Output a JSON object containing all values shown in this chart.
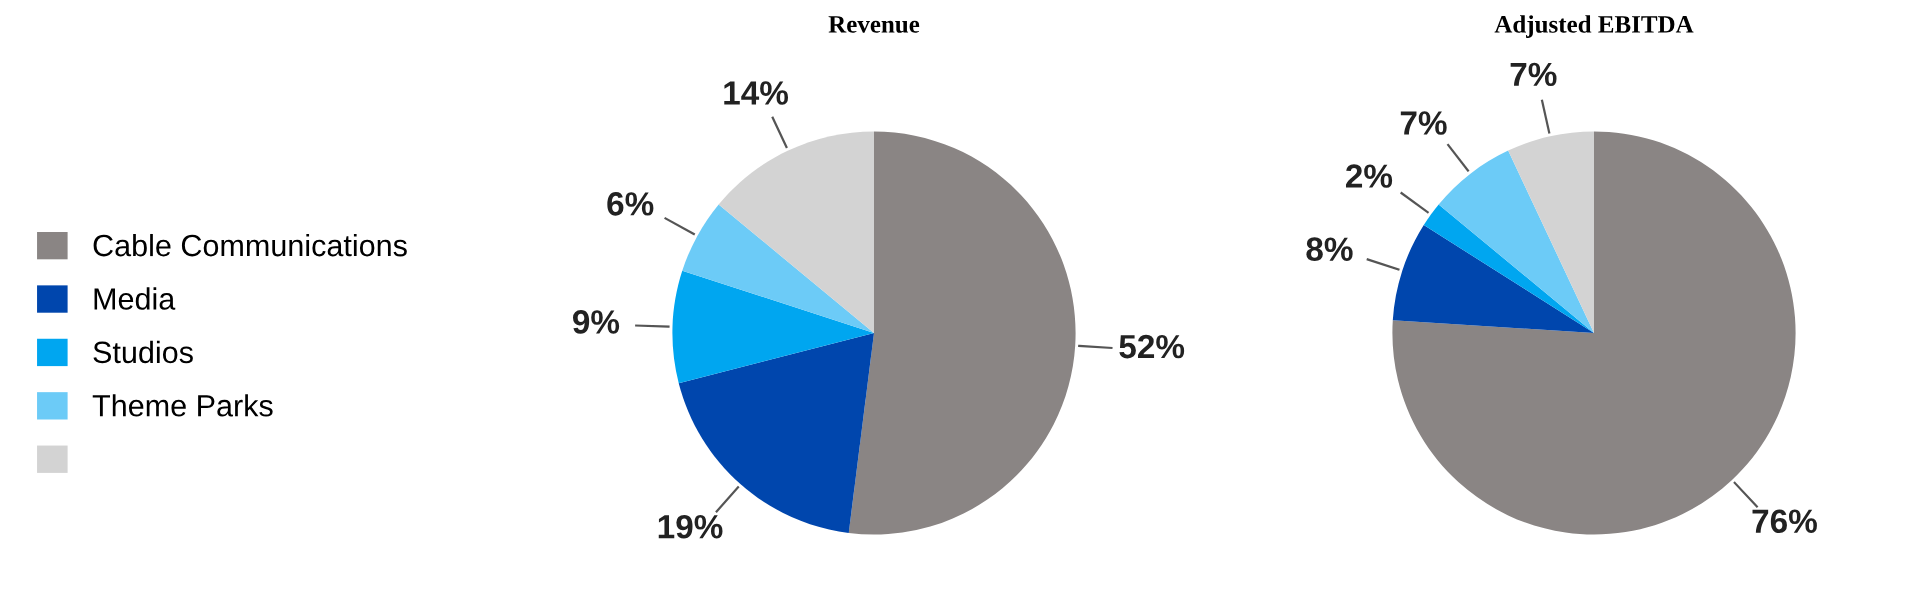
{
  "chart_data": [
    {
      "type": "pie",
      "title": "Revenue",
      "categories": [
        "Cable Communications",
        "Media",
        "Studios",
        "Theme Parks",
        null
      ],
      "values": [
        52,
        19,
        9,
        6,
        14
      ],
      "value_labels": [
        "52%",
        "19%",
        "9%",
        "6%",
        "14%"
      ],
      "colors": [
        "#8a8584",
        "#0046ad",
        "#00a6f0",
        "#6ccbf7",
        "#d3d3d3"
      ],
      "legend": "left"
    },
    {
      "type": "pie",
      "title": "Adjusted EBITDA",
      "values": [
        76,
        8,
        2,
        7,
        7
      ],
      "value_labels": [
        "76%",
        "8%",
        "2%",
        "7%",
        "7%"
      ],
      "colors": [
        "#8a8584",
        "#0046ad",
        "#00a6f0",
        "#6ccbf7",
        "#d3d3d3"
      ]
    }
  ]
}
